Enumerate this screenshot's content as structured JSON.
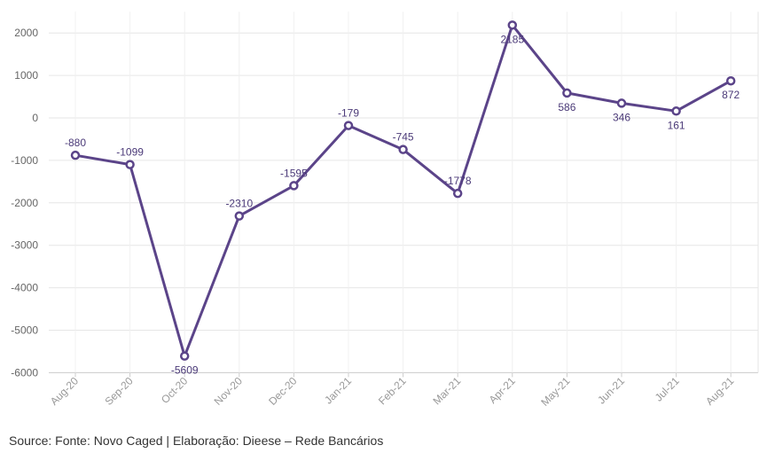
{
  "chart_data": {
    "type": "line",
    "categories": [
      "Aug-20",
      "Sep-20",
      "Oct-20",
      "Nov-20",
      "Dec-20",
      "Jan-21",
      "Feb-21",
      "Mar-21",
      "Apr-21",
      "May-21",
      "Jun-21",
      "Jul-21",
      "Aug-21"
    ],
    "series": [
      {
        "values": [
          -880,
          -1099,
          -5609,
          -2310,
          -1595,
          -179,
          -745,
          -1778,
          2185,
          586,
          346,
          161,
          872
        ]
      }
    ],
    "data_labels": [
      "-880",
      "-1099",
      "-5609",
      "-2310",
      "-1595",
      "-179",
      "-745",
      "-1778",
      "2185",
      "586",
      "346",
      "161",
      "872"
    ],
    "label_positions": [
      "above",
      "above",
      "below",
      "above",
      "above",
      "above",
      "above",
      "above",
      "below",
      "below",
      "below",
      "below",
      "below"
    ],
    "yticks": [
      2000,
      1000,
      0,
      -1000,
      -2000,
      -3000,
      -4000,
      -5000,
      -6000
    ],
    "ylim": [
      -6000,
      2500
    ],
    "grid": true,
    "line_color": "#5b4489",
    "title": "",
    "xlabel": "",
    "ylabel": ""
  },
  "source": "Source: Fonte: Novo Caged | Elaboração: Dieese – Rede Bancários"
}
